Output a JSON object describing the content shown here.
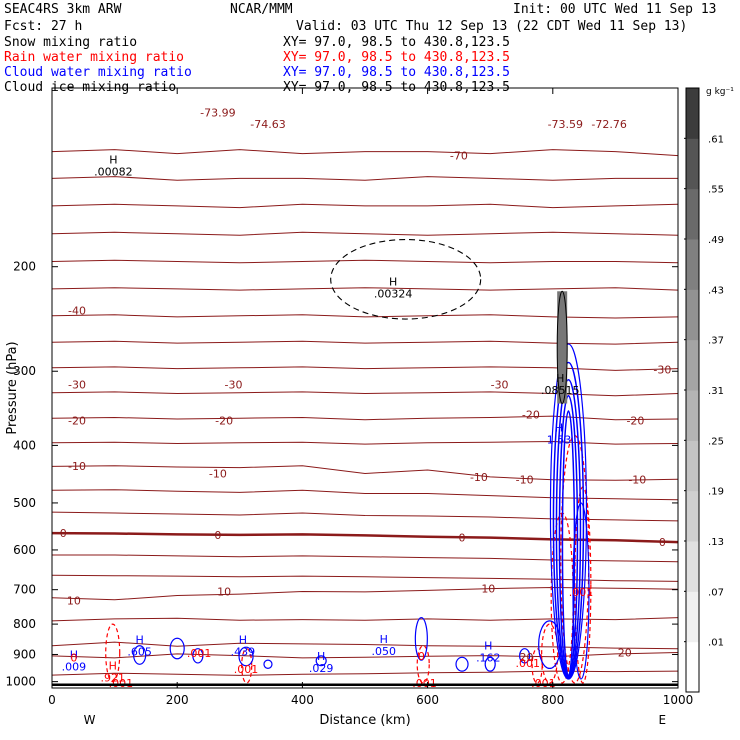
{
  "header": {
    "project": "SEAC4RS  3km ARW",
    "org": "NCAR/MMM",
    "init": "Init: 00 UTC Wed 11 Sep 13",
    "fcst": "Fcst:   27 h",
    "valid": "Valid: 03 UTC Thu 12 Sep 13 (22 CDT Wed 11 Sep 13)",
    "fields": [
      {
        "name": "Snow mixing ratio",
        "xy": "XY=  97.0, 98.5 to 430.8,123.5",
        "color": "#000000"
      },
      {
        "name": "Rain water mixing ratio",
        "xy": "XY=  97.0, 98.5 to 430.8,123.5",
        "color": "#ff0000"
      },
      {
        "name": "Cloud water mixing ratio",
        "xy": "XY=  97.0, 98.5 to 430.8,123.5",
        "color": "#0000ff"
      },
      {
        "name": "Cloud ice mixing ratio",
        "xy": "XY=  97.0, 98.5 to 430.8,123.5",
        "color": "#000000"
      }
    ]
  },
  "chart_data": {
    "type": "line",
    "title": "",
    "xlabel": "Distance (km)",
    "ylabel": "Pressure (hPa)",
    "xlim": [
      0,
      1000
    ],
    "ylim": [
      1025,
      100
    ],
    "y_scale": "log",
    "x_ticks": [
      0,
      200,
      400,
      600,
      800,
      1000
    ],
    "y_ticks": [
      200,
      300,
      400,
      500,
      600,
      700,
      800,
      900,
      1000
    ],
    "endpoint_labels": {
      "left": "W",
      "right": "E"
    },
    "colorbar": {
      "unit": "g kg⁻¹",
      "levels": [
        ".01",
        ".07",
        ".13",
        ".19",
        ".25",
        ".31",
        ".37",
        ".43",
        ".49",
        ".55",
        ".61"
      ],
      "colors": [
        "#ffffff",
        "#f0f0f0",
        "#e0e0e0",
        "#d0d0d0",
        "#c4c4c4",
        "#b4b4b4",
        "#a4a4a4",
        "#929292",
        "#808080",
        "#6a6a6a",
        "#555555",
        "#3c3c3c"
      ]
    },
    "temperature_labels": [
      {
        "text": "-73.99",
        "x": 265,
        "p": 110
      },
      {
        "text": "-74.63",
        "x": 345,
        "p": 115
      },
      {
        "text": "-73.59",
        "x": 820,
        "p": 115
      },
      {
        "text": "-72.76",
        "x": 890,
        "p": 115
      },
      {
        "text": "-70",
        "x": 650,
        "p": 130
      },
      {
        "text": "-40",
        "x": 40,
        "p": 237
      },
      {
        "text": "-30",
        "x": 40,
        "p": 316
      },
      {
        "text": "-30",
        "x": 290,
        "p": 316
      },
      {
        "text": "-30",
        "x": 715,
        "p": 316
      },
      {
        "text": "-30",
        "x": 975,
        "p": 298
      },
      {
        "text": "-20",
        "x": 40,
        "p": 363
      },
      {
        "text": "-20",
        "x": 275,
        "p": 363
      },
      {
        "text": "-20",
        "x": 765,
        "p": 355
      },
      {
        "text": "-20",
        "x": 932,
        "p": 363
      },
      {
        "text": "-10",
        "x": 40,
        "p": 433
      },
      {
        "text": "-10",
        "x": 265,
        "p": 446
      },
      {
        "text": "-10",
        "x": 682,
        "p": 452
      },
      {
        "text": "-10",
        "x": 755,
        "p": 457
      },
      {
        "text": "-10",
        "x": 935,
        "p": 457
      },
      {
        "text": "0",
        "x": 18,
        "p": 562
      },
      {
        "text": "0",
        "x": 265,
        "p": 566
      },
      {
        "text": "0",
        "x": 655,
        "p": 572
      },
      {
        "text": "0",
        "x": 975,
        "p": 582
      },
      {
        "text": "10",
        "x": 35,
        "p": 730
      },
      {
        "text": "10",
        "x": 275,
        "p": 705
      },
      {
        "text": "10",
        "x": 697,
        "p": 697
      },
      {
        "text": "20",
        "x": 758,
        "p": 908
      },
      {
        "text": "20",
        "x": 915,
        "p": 893
      }
    ],
    "temperature_isotherms": [
      {
        "label": "-70",
        "p": [
          128,
          127,
          129,
          127,
          129,
          128,
          128,
          129,
          127,
          128,
          130
        ]
      },
      {
        "label": "",
        "p": [
          142,
          141,
          143,
          142,
          142,
          143,
          141,
          142,
          143,
          142,
          142
        ]
      },
      {
        "label": "",
        "p": [
          158,
          157,
          158,
          159,
          157,
          158,
          158,
          157,
          159,
          158,
          157
        ]
      },
      {
        "label": "",
        "p": [
          176,
          175,
          176,
          177,
          175,
          176,
          177,
          176,
          175,
          176,
          177
        ]
      },
      {
        "label": "",
        "p": [
          196,
          195,
          196,
          197,
          196,
          195,
          196,
          197,
          196,
          196,
          197
        ]
      },
      {
        "label": "-40",
        "p": [
          218,
          217,
          218,
          219,
          218,
          217,
          218,
          219,
          218,
          217,
          219
        ]
      },
      {
        "label": "",
        "p": [
          242,
          241,
          243,
          242,
          241,
          243,
          242,
          241,
          243,
          244,
          243
        ]
      },
      {
        "label": "-30",
        "p": [
          268,
          267,
          269,
          268,
          267,
          269,
          268,
          267,
          269,
          270,
          268
        ]
      },
      {
        "label": "",
        "p": [
          296,
          295,
          297,
          296,
          295,
          297,
          296,
          295,
          296,
          299,
          297
        ]
      },
      {
        "label": "",
        "p": [
          326,
          325,
          327,
          326,
          325,
          327,
          326,
          325,
          327,
          330,
          327
        ]
      },
      {
        "label": "-20",
        "p": [
          360,
          359,
          361,
          360,
          359,
          362,
          360,
          359,
          357,
          362,
          361
        ]
      },
      {
        "label": "",
        "p": [
          396,
          395,
          397,
          396,
          395,
          398,
          396,
          395,
          394,
          398,
          397
        ]
      },
      {
        "label": "-10",
        "p": [
          434,
          433,
          435,
          436,
          433,
          446,
          440,
          452,
          457,
          458,
          456
        ]
      },
      {
        "label": "",
        "p": [
          476,
          475,
          478,
          480,
          476,
          482,
          482,
          486,
          490,
          492,
          494
        ]
      },
      {
        "label": "",
        "p": [
          518,
          520,
          522,
          524,
          520,
          525,
          526,
          528,
          532,
          534,
          536
        ]
      },
      {
        "label": "0",
        "p": [
          562,
          563,
          565,
          566,
          565,
          567,
          570,
          572,
          576,
          578,
          582
        ]
      },
      {
        "label": "",
        "p": [
          612,
          612,
          614,
          616,
          614,
          616,
          618,
          620,
          624,
          626,
          628
        ]
      },
      {
        "label": "",
        "p": [
          662,
          663,
          664,
          666,
          664,
          666,
          668,
          670,
          672,
          676,
          678
        ]
      },
      {
        "label": "10",
        "p": [
          722,
          728,
          716,
          712,
          705,
          706,
          702,
          697,
          694,
          696,
          699
        ]
      },
      {
        "label": "",
        "p": [
          790,
          784,
          782,
          788,
          786,
          788,
          784,
          788,
          784,
          786,
          780
        ]
      },
      {
        "label": "",
        "p": [
          870,
          858,
          872,
          862,
          864,
          866,
          870,
          872,
          874,
          878,
          880
        ]
      },
      {
        "label": "20",
        "p": [
          905,
          912,
          898,
          904,
          912,
          910,
          906,
          904,
          908,
          898,
          893
        ]
      },
      {
        "label": "",
        "p": [
          975,
          968,
          972,
          976,
          972,
          970,
          966,
          964,
          960,
          962,
          960
        ]
      }
    ],
    "extrema_labels": [
      {
        "text": "H",
        "value": ".00082",
        "x": 98,
        "p": 135,
        "color": "#000000"
      },
      {
        "text": "H",
        "value": ".00324",
        "x": 545,
        "p": 217,
        "color": "#000000"
      },
      {
        "text": "H",
        "value": ".08515",
        "x": 812,
        "p": 315,
        "color": "#000000"
      },
      {
        "text": "H",
        "value": "1.53",
        "x": 810,
        "p": 382,
        "color": "#0000ff"
      },
      {
        "text": "H",
        "value": ".605",
        "x": 140,
        "p": 870,
        "color": "#0000ff"
      },
      {
        "text": "H",
        "value": ".439",
        "x": 305,
        "p": 870,
        "color": "#0000ff"
      },
      {
        "text": "H",
        "value": ".050",
        "x": 530,
        "p": 868,
        "color": "#0000ff"
      },
      {
        "text": "H",
        "value": ".029",
        "x": 430,
        "p": 926,
        "color": "#0000ff"
      },
      {
        "text": "H",
        "value": ".009",
        "x": 35,
        "p": 922,
        "color": "#0000ff"
      },
      {
        "text": "H",
        "value": ".162",
        "x": 697,
        "p": 890,
        "color": "#0000ff"
      },
      {
        "text": "H",
        "value": ".921",
        "x": 97,
        "p": 962,
        "color": "#ff0000"
      }
    ],
    "rain_labels": [
      {
        "text": ".001",
        "x": 235,
        "p": 895
      },
      {
        "text": ".001",
        "x": 310,
        "p": 952
      },
      {
        "text": ".001",
        "x": 110,
        "p": 1006
      },
      {
        "text": ".001",
        "x": 595,
        "p": 1006
      },
      {
        "text": ".001",
        "x": 760,
        "p": 930
      },
      {
        "text": ".001",
        "x": 845,
        "p": 707
      },
      {
        "text": ".001",
        "x": 785,
        "p": 1006
      },
      {
        "text": "0",
        "x": 590,
        "p": 905
      },
      {
        "text": "0",
        "x": 35,
        "p": 910
      }
    ],
    "rain_contours": [
      {
        "x": 97,
        "p_top": 800,
        "p_bot": 1000,
        "w": 14
      },
      {
        "x": 311,
        "p_top": 880,
        "p_bot": 1005,
        "w": 10
      },
      {
        "x": 593,
        "p_top": 870,
        "p_bot": 1005,
        "w": 12
      },
      {
        "x": 775,
        "p_top": 880,
        "p_bot": 1005,
        "w": 10
      },
      {
        "x": 795,
        "p_top": 800,
        "p_bot": 1005,
        "w": 16
      },
      {
        "x": 815,
        "p_top": 520,
        "p_bot": 1005,
        "w": 22
      },
      {
        "x": 835,
        "p_top": 385,
        "p_bot": 1005,
        "w": 28
      },
      {
        "x": 848,
        "p_top": 470,
        "p_bot": 1005,
        "w": 16
      }
    ],
    "cloud_water_contours": [
      {
        "x": 140,
        "p_top": 870,
        "p_bot": 935,
        "w": 12
      },
      {
        "x": 200,
        "p_top": 845,
        "p_bot": 915,
        "w": 14
      },
      {
        "x": 233,
        "p_top": 880,
        "p_bot": 930,
        "w": 10
      },
      {
        "x": 310,
        "p_top": 875,
        "p_bot": 940,
        "w": 14
      },
      {
        "x": 345,
        "p_top": 920,
        "p_bot": 950,
        "w": 8
      },
      {
        "x": 430,
        "p_top": 905,
        "p_bot": 940,
        "w": 10
      },
      {
        "x": 590,
        "p_top": 780,
        "p_bot": 920,
        "w": 12
      },
      {
        "x": 655,
        "p_top": 910,
        "p_bot": 960,
        "w": 12
      },
      {
        "x": 700,
        "p_top": 910,
        "p_bot": 960,
        "w": 10
      },
      {
        "x": 755,
        "p_top": 880,
        "p_bot": 930,
        "w": 10
      },
      {
        "x": 795,
        "p_top": 790,
        "p_bot": 950,
        "w": 22
      },
      {
        "x": 825,
        "p_top": 270,
        "p_bot": 990,
        "w": 36
      },
      {
        "x": 845,
        "p_top": 500,
        "p_bot": 990,
        "w": 16
      }
    ],
    "snow_contours": [
      {
        "x": 815,
        "p_top": 220,
        "p_bot": 340,
        "w": 10
      }
    ],
    "cloud_ice_contours": [
      {
        "x": 565,
        "p_top": 180,
        "p_bot": 245,
        "w": 150
      }
    ]
  }
}
